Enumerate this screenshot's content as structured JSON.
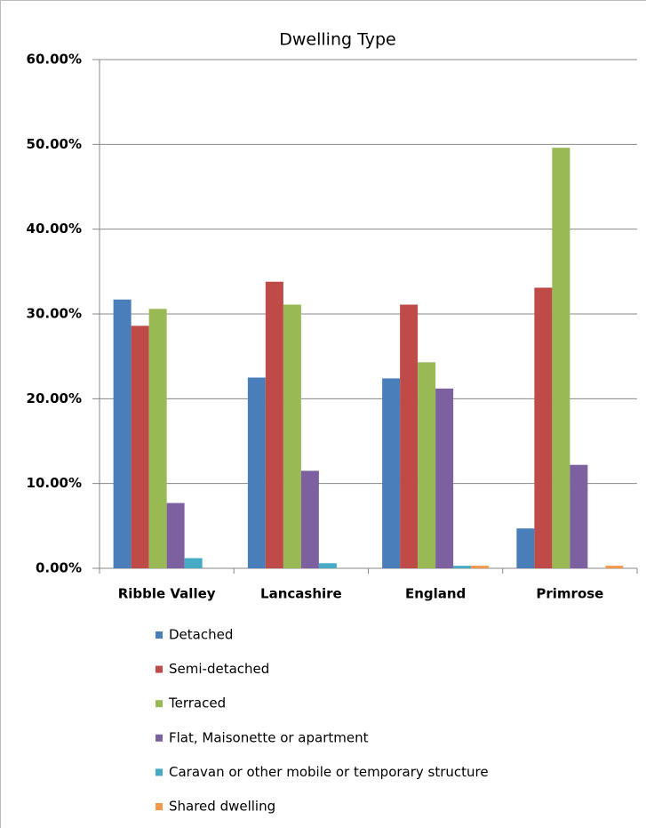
{
  "chart_data": {
    "type": "bar",
    "title": "Dwelling Type",
    "categories": [
      "Ribble Valley",
      "Lancashire",
      "England",
      "Primrose"
    ],
    "series": [
      {
        "name": "Detached",
        "color": "#4a7ebb",
        "values": [
          31.7,
          22.5,
          22.4,
          4.7
        ]
      },
      {
        "name": "Semi-detached",
        "color": "#be4b48",
        "values": [
          28.6,
          33.8,
          31.1,
          33.1
        ]
      },
      {
        "name": "Terraced",
        "color": "#98b954",
        "values": [
          30.6,
          31.1,
          24.3,
          49.6
        ]
      },
      {
        "name": "Flat, Maisonette or apartment",
        "color": "#7d60a0",
        "values": [
          7.7,
          11.5,
          21.2,
          12.2
        ]
      },
      {
        "name": "Caravan or other mobile or temporary structure",
        "color": "#46aac5",
        "values": [
          1.2,
          0.6,
          0.3,
          0
        ]
      },
      {
        "name": "Shared dwelling",
        "color": "#f79646",
        "values": [
          0,
          0,
          0.3,
          0.3
        ]
      }
    ],
    "ylim": [
      0,
      60
    ],
    "yticks": [
      {
        "value": 0,
        "label": "0.00%"
      },
      {
        "value": 10,
        "label": "10.00%"
      },
      {
        "value": 20,
        "label": "20.00%"
      },
      {
        "value": 30,
        "label": "30.00%"
      },
      {
        "value": 40,
        "label": "40.00%"
      },
      {
        "value": 50,
        "label": "50.00%"
      },
      {
        "value": 60,
        "label": "60.00%"
      }
    ],
    "grid": true,
    "legend": "bottom"
  }
}
